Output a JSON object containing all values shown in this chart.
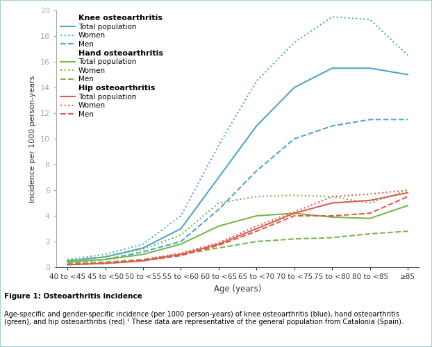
{
  "x_labels": [
    "40 to <45",
    "45 to <50",
    "50 to <55",
    "55 to <60",
    "60 to <65",
    "65 to <70",
    "70 to <75",
    "75 to <80",
    "80 to <85",
    "≥85"
  ],
  "x_positions": [
    0,
    1,
    2,
    3,
    4,
    5,
    6,
    7,
    8,
    9
  ],
  "knee_total": [
    0.5,
    0.8,
    1.5,
    3.0,
    7.0,
    11.0,
    14.0,
    15.5,
    15.5,
    15.0
  ],
  "knee_women": [
    0.6,
    1.0,
    1.8,
    4.0,
    9.5,
    14.5,
    17.5,
    19.5,
    19.3,
    16.5
  ],
  "knee_men": [
    0.4,
    0.6,
    1.2,
    2.0,
    4.5,
    7.5,
    10.0,
    11.0,
    11.5,
    11.5
  ],
  "hand_total": [
    0.4,
    0.6,
    1.0,
    1.8,
    3.2,
    4.0,
    4.2,
    3.9,
    3.8,
    4.8
  ],
  "hand_women": [
    0.5,
    0.8,
    1.4,
    2.5,
    5.0,
    5.5,
    5.6,
    5.5,
    5.0,
    6.0
  ],
  "hand_men": [
    0.3,
    0.4,
    0.6,
    1.0,
    1.5,
    2.0,
    2.2,
    2.3,
    2.6,
    2.8
  ],
  "hip_total": [
    0.2,
    0.3,
    0.5,
    1.0,
    1.8,
    3.0,
    4.2,
    5.0,
    5.2,
    5.8
  ],
  "hip_women": [
    0.2,
    0.3,
    0.6,
    1.1,
    1.9,
    3.2,
    4.3,
    5.5,
    5.7,
    6.0
  ],
  "hip_men": [
    0.2,
    0.3,
    0.5,
    0.9,
    1.7,
    2.8,
    4.0,
    4.0,
    4.2,
    5.5
  ],
  "blue": "#4da6c8",
  "green": "#7ab648",
  "red": "#e05a4e",
  "ylabel": "Incidence per 1000 person-years",
  "xlabel": "Age (years)",
  "ylim": [
    0,
    20
  ],
  "yticks": [
    0,
    2,
    4,
    6,
    8,
    10,
    12,
    14,
    16,
    18,
    20
  ],
  "figure_caption_bold": "Figure 1: Osteoarthritis incidence",
  "figure_caption": "Age-specific and gender-specific incidence (per 1000 person-years) of knee osteoarthritis (blue), hand osteoarthritis\n(green), and hip osteoarthritis (red).¹ These data are representative of the general population from Catalonia (Spain)."
}
